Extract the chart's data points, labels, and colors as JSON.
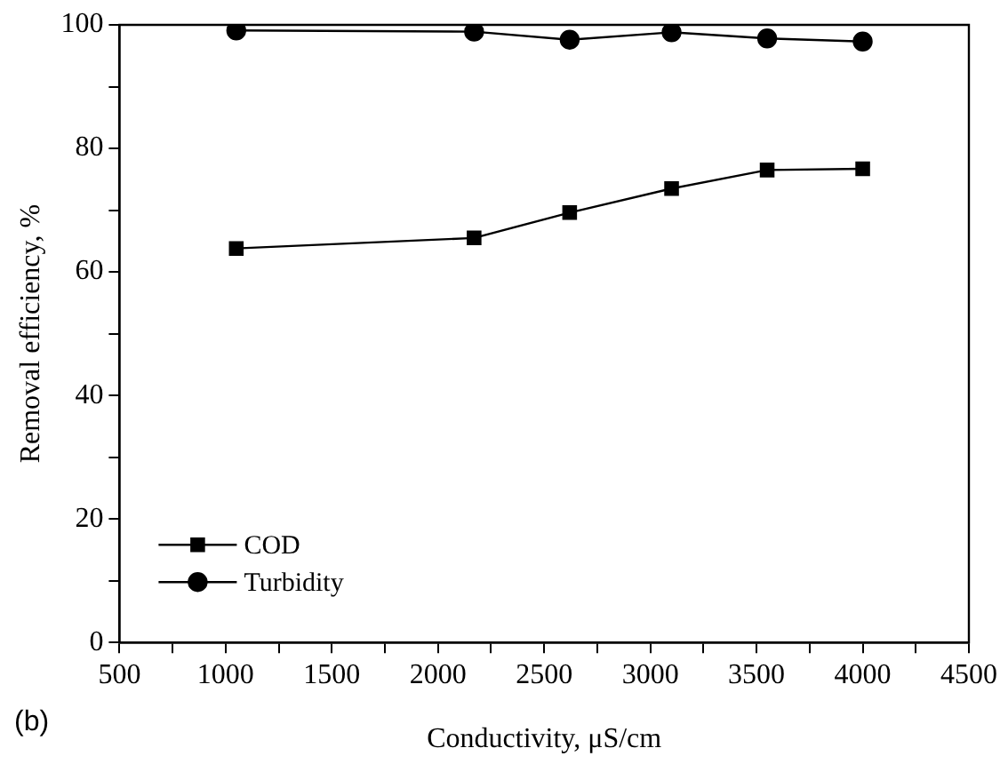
{
  "chart_data": {
    "type": "line",
    "xlabel": "Conductivity, μS/cm",
    "ylabel": "Removal efficiency, %",
    "x": [
      1050,
      2170,
      2620,
      3100,
      3550,
      4000
    ],
    "series": [
      {
        "name": "COD",
        "color": "#000000",
        "marker": "square",
        "values": [
          63.8,
          65.5,
          69.6,
          73.5,
          76.5,
          76.7
        ]
      },
      {
        "name": "Turbidity",
        "color": "#000000",
        "marker": "circle",
        "values": [
          99.1,
          98.9,
          97.6,
          98.8,
          97.8,
          97.3
        ]
      }
    ],
    "xlim": [
      500,
      4500
    ],
    "xticks": [
      500,
      {
        "value": 750,
        "label": null
      },
      1000,
      {
        "value": 1250,
        "label": null
      },
      1500,
      {
        "value": 1750,
        "label": null
      },
      2000,
      {
        "value": 2250,
        "label": null
      },
      2500,
      {
        "value": 2750,
        "label": null
      },
      3000,
      {
        "value": 3250,
        "label": null
      },
      3500,
      {
        "value": 3750,
        "label": null
      },
      4000,
      {
        "value": 4250,
        "label": null
      },
      4500
    ],
    "ylim": [
      0,
      100
    ],
    "yticks": [
      0,
      {
        "value": 10,
        "label": null
      },
      20,
      {
        "value": 30,
        "label": null
      },
      40,
      {
        "value": 50,
        "label": null
      },
      60,
      {
        "value": 70,
        "label": null
      },
      80,
      {
        "value": 90,
        "label": null
      },
      100
    ],
    "grid": false,
    "legend": "bottom left",
    "line_style": "solid",
    "annotations": [
      "(b)"
    ]
  }
}
